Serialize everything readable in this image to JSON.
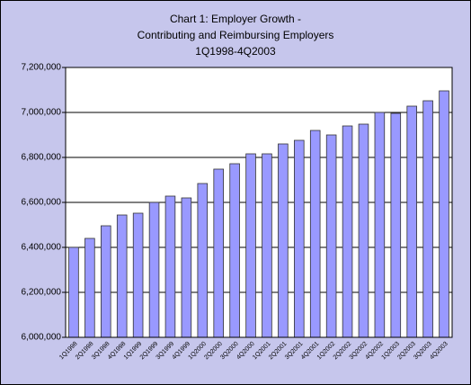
{
  "chart_data": {
    "type": "bar",
    "title": [
      "Chart 1: Employer Growth -",
      "Contributing and Reimbursing Employers",
      "1Q1998-4Q2003"
    ],
    "categories": [
      "1Q1998",
      "2Q1998",
      "3Q1998",
      "4Q1998",
      "1Q1999",
      "2Q1999",
      "3Q1999",
      "4Q1999",
      "1Q2000",
      "2Q2000",
      "3Q2000",
      "4Q2000",
      "1Q2001",
      "2Q2001",
      "3Q2001",
      "4Q2001",
      "1Q2002",
      "2Q2002",
      "3Q2002",
      "4Q2002",
      "1Q2003",
      "2Q2003",
      "3Q2003",
      "4Q2003"
    ],
    "values": [
      6400000,
      6440000,
      6496000,
      6544000,
      6552000,
      6600000,
      6628000,
      6620000,
      6684000,
      6748000,
      6772000,
      6816000,
      6816000,
      6860000,
      6876000,
      6920000,
      6900000,
      6940000,
      6948000,
      7000000,
      6996000,
      7028000,
      7052000,
      7096000
    ],
    "color": "#9999ff",
    "ylim": [
      6000000,
      7200000
    ],
    "yticks": [
      {
        "value": 6000000,
        "label": "6,000,000"
      },
      {
        "value": 6200000,
        "label": "6,200,000"
      },
      {
        "value": 6400000,
        "label": "6,400,000"
      },
      {
        "value": 6600000,
        "label": "6,600,000"
      },
      {
        "value": 6800000,
        "label": "6,800,000"
      },
      {
        "value": 7000000,
        "label": "7,000,000"
      },
      {
        "value": 7200000,
        "label": "7,200,000"
      }
    ],
    "grid": true
  }
}
